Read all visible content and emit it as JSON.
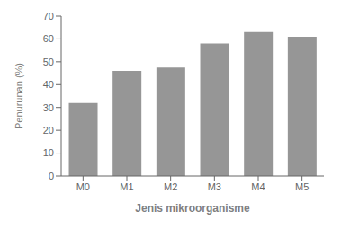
{
  "chart_data": {
    "type": "bar",
    "categories": [
      "M0",
      "M1",
      "M2",
      "M3",
      "M4",
      "M5"
    ],
    "values": [
      32,
      46,
      47.5,
      58,
      63,
      61
    ],
    "color": "#969696",
    "xlabel": "Jenis mikroorganisme",
    "ylabel": "Penurunan (%)",
    "ylim": [
      0,
      70
    ],
    "yticks": [
      0,
      10,
      20,
      30,
      40,
      50,
      60,
      70
    ],
    "grid": false
  }
}
